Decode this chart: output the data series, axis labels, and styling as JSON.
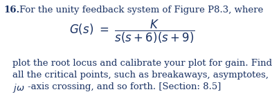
{
  "problem_number": "16.",
  "line1": "For the unity feedback system of Figure P8.3, where",
  "line3": "plot the root locus and calibrate your plot for gain. Find",
  "line4": "all the critical points, such as breakaways, asymptotes,",
  "line5_rest": "-axis crossing, and so forth. [Section: 8.5]",
  "text_color": "#1a3263",
  "bg_color": "#ffffff",
  "fontsize_main": 9.5,
  "fontsize_formula": 12.0,
  "fig_width": 3.93,
  "fig_height": 1.46,
  "dpi": 100
}
